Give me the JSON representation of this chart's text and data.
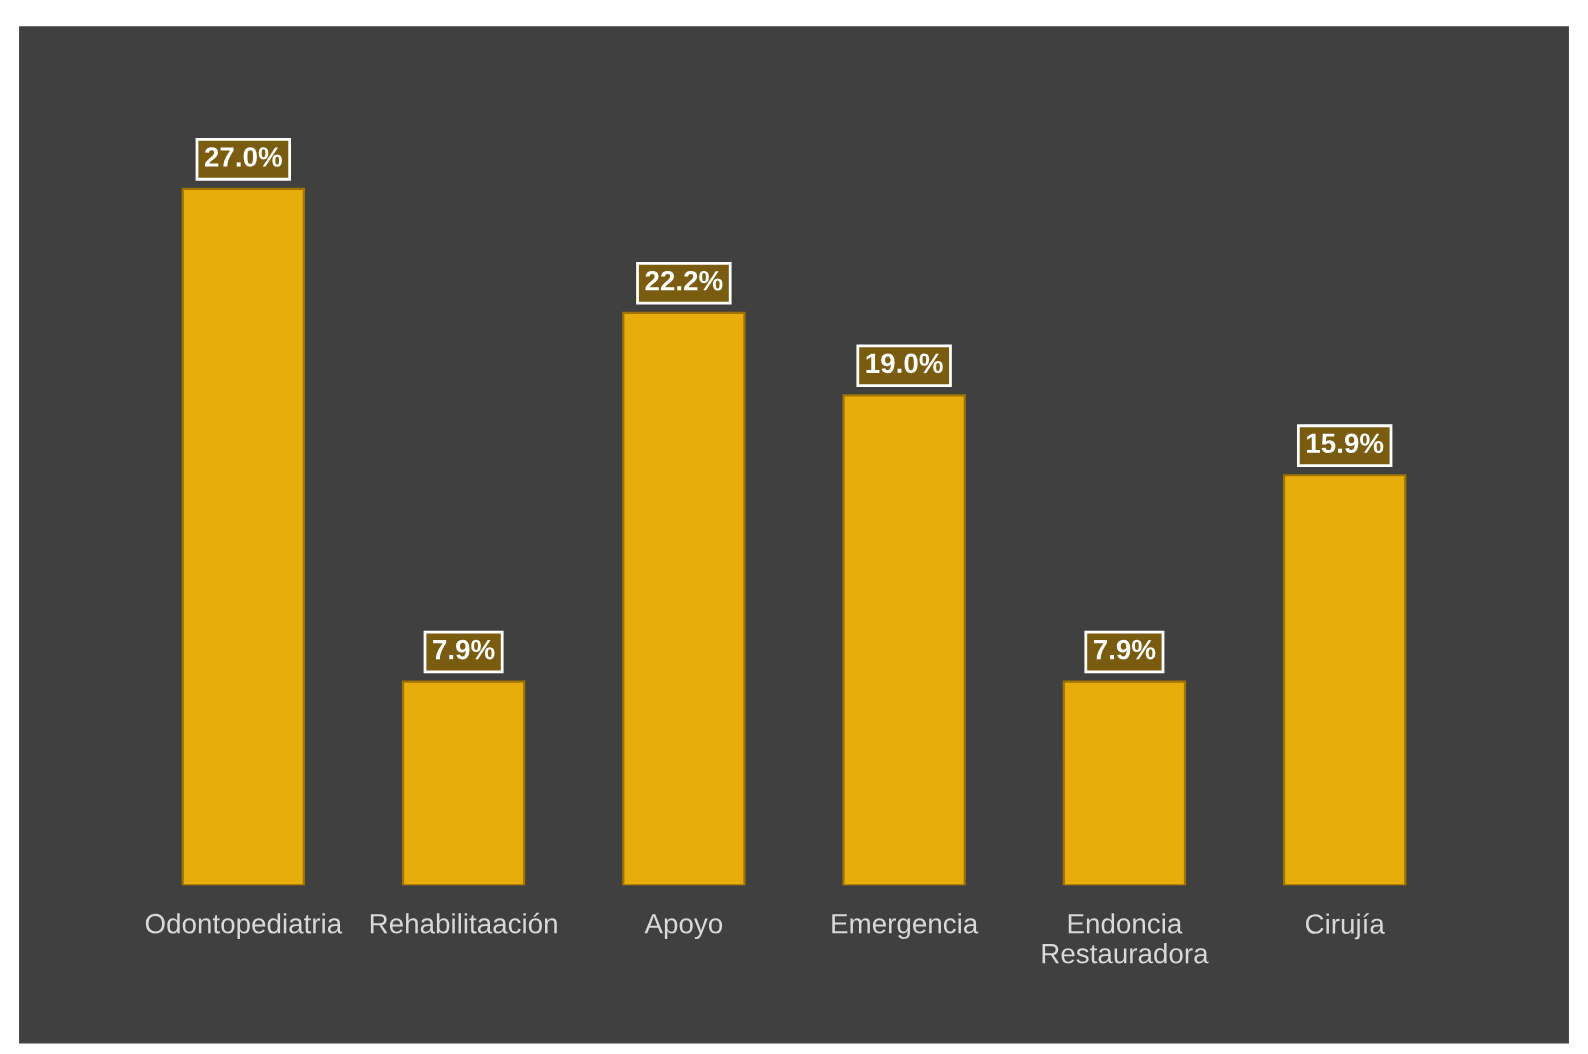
{
  "chart_data": {
    "type": "bar",
    "categories": [
      "Odontopediatria",
      "Rehabilitaación",
      "Apoyo",
      "Emergencia",
      "Endoncia\nRestauradora",
      "Cirujía"
    ],
    "values": [
      27.0,
      7.9,
      22.2,
      19.0,
      7.9,
      15.9
    ],
    "value_labels": [
      "27.0%",
      "7.9%",
      "22.2%",
      "19.0%",
      "7.9%",
      "15.9%"
    ],
    "color": "#e8ad0a",
    "grid": false,
    "legend": false
  }
}
